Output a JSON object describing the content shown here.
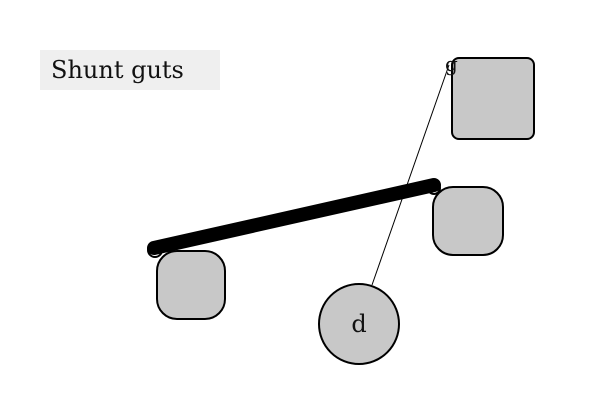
{
  "title": "Shunt guts",
  "colors": {
    "node_fill": "#c8c8c8",
    "node_stroke": "#000000",
    "title_background": "#efefef",
    "edge": "#000000"
  },
  "nodes": {
    "g": {
      "label": "g",
      "shape": "square"
    },
    "d": {
      "label": "d",
      "shape": "circle"
    },
    "left": {
      "shape": "rounded-square"
    },
    "right": {
      "shape": "rounded-square"
    }
  },
  "edges": [
    {
      "name": "thick-connector",
      "style": "thick"
    },
    {
      "name": "thin-connector-d-g",
      "style": "thin"
    }
  ]
}
